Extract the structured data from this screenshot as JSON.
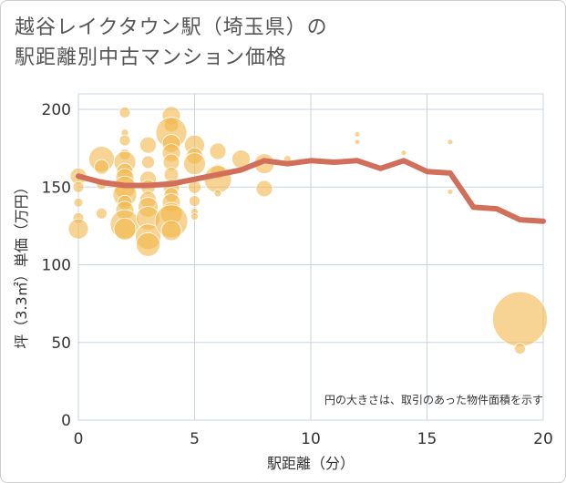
{
  "title_lines": [
    "越谷レイクタウン駅（埼玉県）の",
    "駅距離別中古マンション価格"
  ],
  "note": "円の大きさは、取引のあった物件面積を示す",
  "colors": {
    "bubble": "#f2b84b",
    "line": "#d26f5b",
    "grid": "#c8d4df",
    "border": "#cccccc"
  },
  "chart_data": {
    "type": "scatter",
    "xlabel": "駅距離（分）",
    "ylabel": "坪（3.3㎡）単価（万円）",
    "xlim": [
      0,
      20
    ],
    "ylim": [
      0,
      200
    ],
    "x_ticks": [
      "0",
      "5",
      "10",
      "15",
      "20"
    ],
    "y_ticks": [
      "0",
      "50",
      "100",
      "150",
      "200"
    ],
    "grid": true,
    "trend_line": {
      "x": [
        0,
        1,
        2,
        3,
        4,
        5,
        6,
        7,
        8,
        9,
        10,
        11,
        12,
        13,
        14,
        15,
        16,
        17,
        18,
        19,
        20
      ],
      "y": [
        157,
        153,
        151,
        151,
        152,
        155,
        158,
        161,
        167,
        165,
        167,
        166,
        167,
        162,
        167,
        160,
        159,
        137,
        136,
        129,
        128
      ]
    },
    "bubbles": [
      {
        "x": 0,
        "y": 157,
        "r": 9
      },
      {
        "x": 0,
        "y": 150,
        "r": 6
      },
      {
        "x": 0,
        "y": 140,
        "r": 5
      },
      {
        "x": 0,
        "y": 130,
        "r": 6
      },
      {
        "x": 0,
        "y": 123,
        "r": 11
      },
      {
        "x": 1,
        "y": 168,
        "r": 14
      },
      {
        "x": 1,
        "y": 163,
        "r": 8
      },
      {
        "x": 1,
        "y": 152,
        "r": 6
      },
      {
        "x": 1,
        "y": 133,
        "r": 6
      },
      {
        "x": 2,
        "y": 198,
        "r": 6
      },
      {
        "x": 2,
        "y": 185,
        "r": 4
      },
      {
        "x": 2,
        "y": 180,
        "r": 6
      },
      {
        "x": 2,
        "y": 171,
        "r": 6
      },
      {
        "x": 2,
        "y": 166,
        "r": 12
      },
      {
        "x": 2,
        "y": 160,
        "r": 9
      },
      {
        "x": 2,
        "y": 156,
        "r": 10
      },
      {
        "x": 2,
        "y": 150,
        "r": 12
      },
      {
        "x": 2,
        "y": 145,
        "r": 13
      },
      {
        "x": 2,
        "y": 140,
        "r": 8
      },
      {
        "x": 2,
        "y": 135,
        "r": 10
      },
      {
        "x": 2,
        "y": 126,
        "r": 16
      },
      {
        "x": 2,
        "y": 123,
        "r": 12
      },
      {
        "x": 3,
        "y": 177,
        "r": 9
      },
      {
        "x": 3,
        "y": 166,
        "r": 7
      },
      {
        "x": 3,
        "y": 155,
        "r": 9
      },
      {
        "x": 3,
        "y": 150,
        "r": 8
      },
      {
        "x": 3,
        "y": 142,
        "r": 9
      },
      {
        "x": 3,
        "y": 137,
        "r": 11
      },
      {
        "x": 3,
        "y": 130,
        "r": 13
      },
      {
        "x": 3,
        "y": 118,
        "r": 14
      },
      {
        "x": 3,
        "y": 113,
        "r": 13
      },
      {
        "x": 4,
        "y": 196,
        "r": 10
      },
      {
        "x": 4,
        "y": 190,
        "r": 8
      },
      {
        "x": 4,
        "y": 185,
        "r": 17
      },
      {
        "x": 4,
        "y": 178,
        "r": 10
      },
      {
        "x": 4,
        "y": 172,
        "r": 10
      },
      {
        "x": 4,
        "y": 166,
        "r": 9
      },
      {
        "x": 4,
        "y": 158,
        "r": 8
      },
      {
        "x": 4,
        "y": 150,
        "r": 9
      },
      {
        "x": 4,
        "y": 145,
        "r": 8
      },
      {
        "x": 4,
        "y": 140,
        "r": 10
      },
      {
        "x": 4,
        "y": 133,
        "r": 12
      },
      {
        "x": 4,
        "y": 128,
        "r": 18
      },
      {
        "x": 4,
        "y": 122,
        "r": 11
      },
      {
        "x": 5,
        "y": 177,
        "r": 11
      },
      {
        "x": 5,
        "y": 170,
        "r": 9
      },
      {
        "x": 5,
        "y": 165,
        "r": 12
      },
      {
        "x": 5,
        "y": 150,
        "r": 7
      },
      {
        "x": 5,
        "y": 141,
        "r": 6
      },
      {
        "x": 5,
        "y": 134,
        "r": 4
      },
      {
        "x": 5,
        "y": 131,
        "r": 4
      },
      {
        "x": 6,
        "y": 173,
        "r": 9
      },
      {
        "x": 6,
        "y": 160,
        "r": 8
      },
      {
        "x": 6,
        "y": 155,
        "r": 15
      },
      {
        "x": 6,
        "y": 146,
        "r": 4
      },
      {
        "x": 7,
        "y": 168,
        "r": 10
      },
      {
        "x": 8,
        "y": 165,
        "r": 11
      },
      {
        "x": 8,
        "y": 149,
        "r": 9
      },
      {
        "x": 9,
        "y": 168,
        "r": 4
      },
      {
        "x": 12,
        "y": 184,
        "r": 3
      },
      {
        "x": 12,
        "y": 179,
        "r": 3
      },
      {
        "x": 14,
        "y": 172,
        "r": 3
      },
      {
        "x": 16,
        "y": 179,
        "r": 3
      },
      {
        "x": 16,
        "y": 147,
        "r": 3
      },
      {
        "x": 19,
        "y": 65,
        "r": 30
      },
      {
        "x": 19,
        "y": 46,
        "r": 6
      }
    ]
  }
}
